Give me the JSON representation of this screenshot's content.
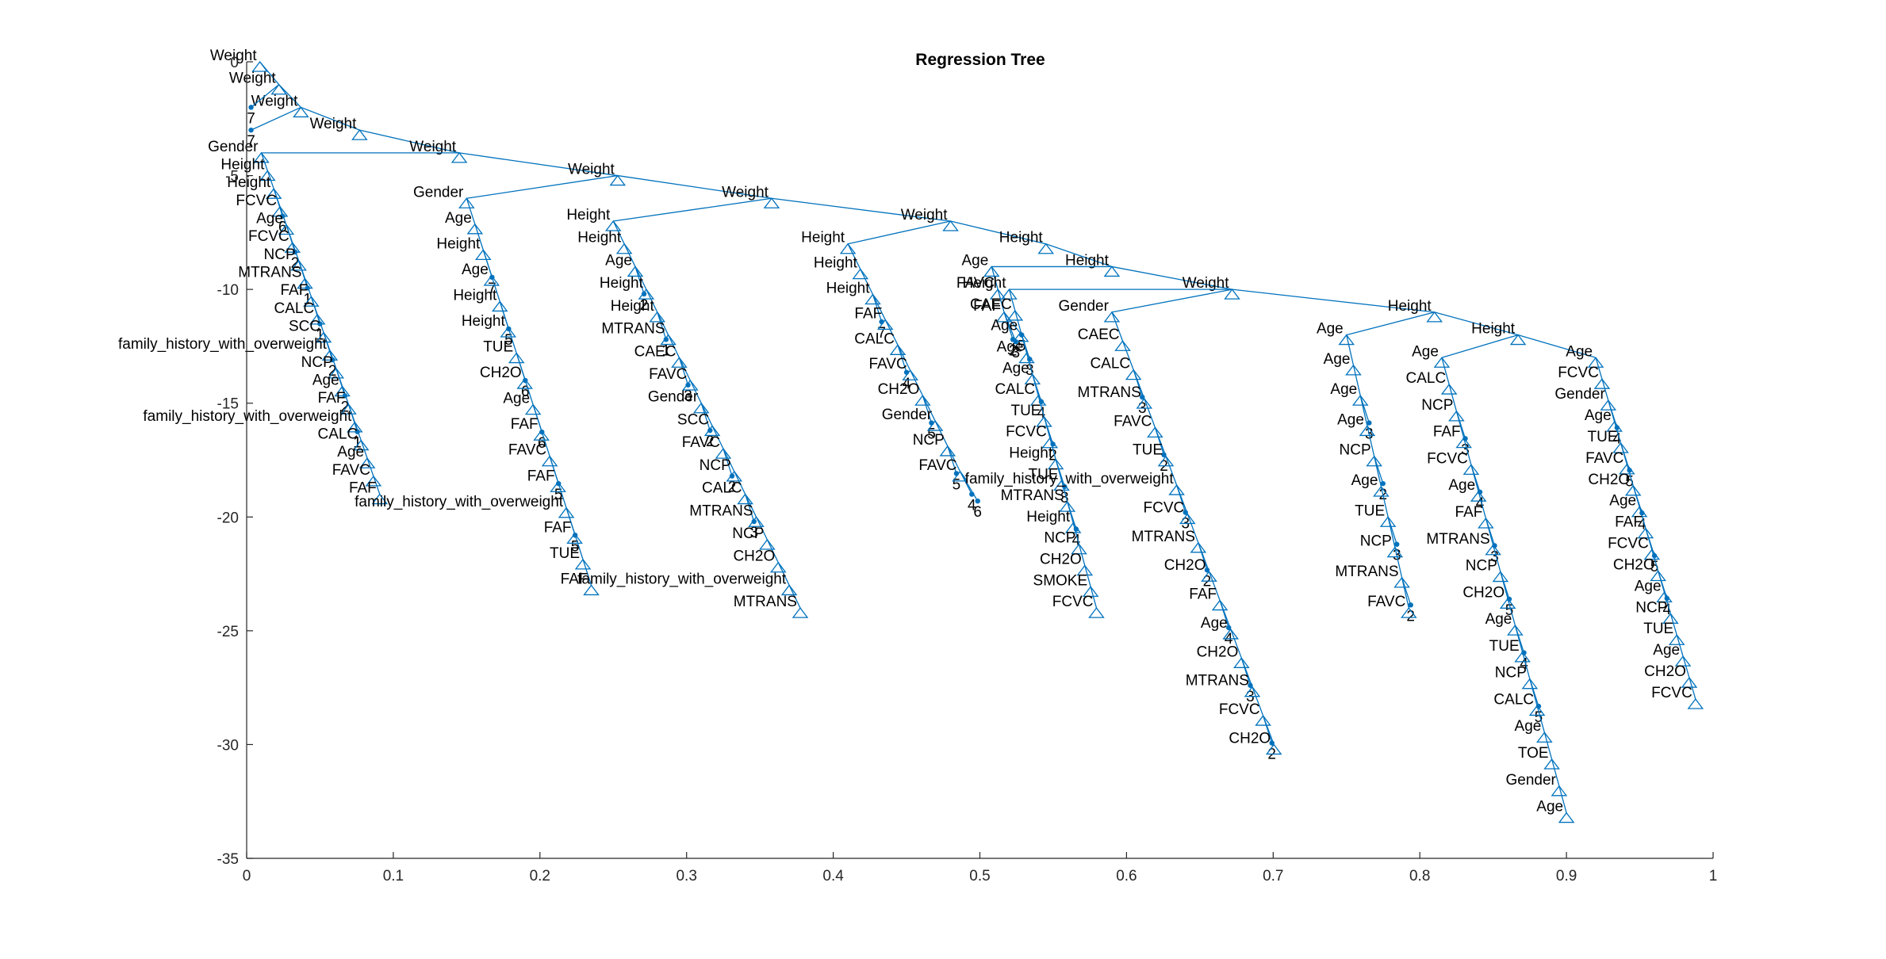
{
  "figure": {
    "title": "Regression Tree",
    "line_color": "#0072BD",
    "axes_color": "#262626",
    "background": "#ffffff"
  },
  "chart_data": {
    "type": "tree",
    "title": "Regression Tree",
    "xlabel": "",
    "ylabel": "",
    "xlim": [
      0,
      1
    ],
    "ylim": [
      -35,
      0
    ],
    "x_ticks": [
      0,
      0.1,
      0.2,
      0.3,
      0.4,
      0.5,
      0.6,
      0.7,
      0.8,
      0.9,
      1
    ],
    "x_tick_labels": [
      "0",
      "0.1",
      "0.2",
      "0.3",
      "0.4",
      "0.5",
      "0.6",
      "0.7",
      "0.8",
      "0.9",
      "1"
    ],
    "y_ticks": [
      0,
      -5,
      -10,
      -15,
      -20,
      -25,
      -30,
      -35
    ],
    "y_tick_labels": [
      "0",
      "-5",
      "-10",
      "-15",
      "-20",
      "-25",
      "-30",
      "-35"
    ],
    "spine": [
      {
        "label": "Weight",
        "x": 0.009,
        "y": 0
      },
      {
        "label": "Weight",
        "x": 0.022,
        "y": -1
      },
      {
        "label": "Weight",
        "x": 0.037,
        "y": -2
      },
      {
        "label": "Weight",
        "x": 0.077,
        "y": -3
      },
      {
        "label": "Weight",
        "x": 0.145,
        "y": -4
      },
      {
        "label": "Weight",
        "x": 0.253,
        "y": -5
      },
      {
        "label": "Weight",
        "x": 0.358,
        "y": -6
      },
      {
        "label": "Weight",
        "x": 0.48,
        "y": -7
      },
      {
        "label": "Height",
        "x": 0.545,
        "y": -8
      },
      {
        "label": "Height",
        "x": 0.59,
        "y": -9
      },
      {
        "label": "Weight",
        "x": 0.672,
        "y": -10
      },
      {
        "label": "Height",
        "x": 0.81,
        "y": -11
      },
      {
        "label": "Height",
        "x": 0.867,
        "y": -12
      }
    ],
    "left_leaves": [
      {
        "label": "7",
        "x": 0.003,
        "y": -2
      },
      {
        "label": "7",
        "x": 0.003,
        "y": -3
      }
    ],
    "subtrees": [
      {
        "root": "Gender",
        "x": 0.01,
        "y": -4,
        "parent_spine": 4,
        "depth": 15,
        "width": 0.095,
        "nodes": [
          "Height",
          "Height",
          "FCVC",
          "Age",
          "FCVC",
          "NCP",
          "MTRANS",
          "FAF",
          "CALC",
          "SCC",
          "family_history_with_overweight",
          "NCP",
          "Age",
          "FAF",
          "family_history_with_overweight",
          "CALC",
          "Age",
          "FAVC",
          "FAF"
        ],
        "leaves": [
          "6",
          "2",
          "1",
          "1",
          "2",
          "2",
          "1"
        ]
      },
      {
        "root": "Gender",
        "x": 0.15,
        "y": -6,
        "parent_spine": 5,
        "depth": 17,
        "width": 0.1,
        "nodes": [
          "Age",
          "Height",
          "Age",
          "Height",
          "Height",
          "TUE",
          "CH2O",
          "Age",
          "FAF",
          "FAVC",
          "FAF",
          "family_history_with_overweight",
          "FAF",
          "TUE",
          "FAF"
        ],
        "leaves": [
          "7",
          "5",
          "6",
          "6",
          "5",
          "5"
        ]
      },
      {
        "root": "Height",
        "x": 0.25,
        "y": -7,
        "parent_spine": 6,
        "depth": 17,
        "width": 0.15,
        "nodes": [
          "Height",
          "Age",
          "Height",
          "Height",
          "MTRANS",
          "CAEC",
          "FAVC",
          "Gender",
          "SCC",
          "FAVC",
          "NCP",
          "CALC",
          "MTRANS",
          "NCP",
          "CH2O",
          "family_history_with_overweight",
          "MTRANS"
        ],
        "leaves": [
          "2",
          "1",
          "3",
          "2",
          "2",
          "3"
        ]
      },
      {
        "root": "Height",
        "x": 0.41,
        "y": -8,
        "parent_spine": 7,
        "depth": 10,
        "width": 0.09,
        "nodes": [
          "Height",
          "Height",
          "FAF",
          "CALC",
          "FAVC",
          "CH2O",
          "Gender",
          "NCP",
          "FAVC"
        ],
        "leaves": [
          "7",
          "4",
          "5",
          "5",
          "4",
          "6"
        ]
      },
      {
        "root": "Age",
        "x": 0.508,
        "y": -9,
        "parent_spine": 9,
        "depth": 2,
        "width": 0.01,
        "nodes": [
          "FAVC",
          "FAF"
        ],
        "leaves": [
          "2",
          "3",
          "5"
        ]
      },
      {
        "root": "Height",
        "x": 0.52,
        "y": -10,
        "parent_spine": 10,
        "depth": 14,
        "width": 0.07,
        "nodes": [
          "CAEC",
          "Age",
          "Age",
          "Age",
          "CALC",
          "TUE",
          "FCVC",
          "Height",
          "TUE",
          "MTRANS",
          "Height",
          "NCP",
          "CH2O",
          "SMOKE",
          "FCVC"
        ],
        "leaves": [
          "3",
          "4",
          "2",
          "3",
          "4"
        ]
      },
      {
        "root": "Gender",
        "x": 0.59,
        "y": -11,
        "parent_spine": 10,
        "depth": 19,
        "width": 0.13,
        "nodes": [
          "CAEC",
          "CALC",
          "MTRANS",
          "FAVC",
          "TUE",
          "family_history_with_overweight",
          "FCVC",
          "MTRANS",
          "CH2O",
          "FAF",
          "Age",
          "CH2O",
          "MTRANS",
          "FCVC",
          "CH2O"
        ],
        "leaves": [
          "3",
          "2",
          "3",
          "2",
          "4",
          "3",
          "2"
        ]
      },
      {
        "root": "Age",
        "x": 0.75,
        "y": -12,
        "parent_spine": 11,
        "depth": 12,
        "width": 0.05,
        "nodes": [
          "Age",
          "Age",
          "Age",
          "NCP",
          "Age",
          "TUE",
          "NCP",
          "MTRANS",
          "FAVC"
        ],
        "leaves": [
          "3",
          "2",
          "3",
          "2"
        ]
      },
      {
        "root": "Age",
        "x": 0.815,
        "y": -13,
        "parent_spine": 12,
        "depth": 20,
        "width": 0.1,
        "nodes": [
          "CALC",
          "NCP",
          "FAF",
          "FCVC",
          "Age",
          "FAF",
          "MTRANS",
          "NCP",
          "CH2O",
          "Age",
          "TUE",
          "NCP",
          "CALC",
          "Age",
          "TOE",
          "Gender",
          "Age"
        ],
        "leaves": [
          "3",
          "4",
          "3",
          "5",
          "4",
          "5"
        ]
      },
      {
        "root": "Age",
        "x": 0.92,
        "y": -13,
        "parent_spine": 12,
        "depth": 15,
        "width": 0.08,
        "nodes": [
          "FCVC",
          "Gender",
          "Age",
          "TUE",
          "FAVC",
          "CH2O",
          "Age",
          "FAF",
          "FCVC",
          "CH2O",
          "Age",
          "NCP",
          "TUE",
          "Age",
          "CH2O",
          "FCVC"
        ],
        "leaves": [
          "4",
          "5",
          "4",
          "5",
          "4"
        ]
      }
    ]
  }
}
